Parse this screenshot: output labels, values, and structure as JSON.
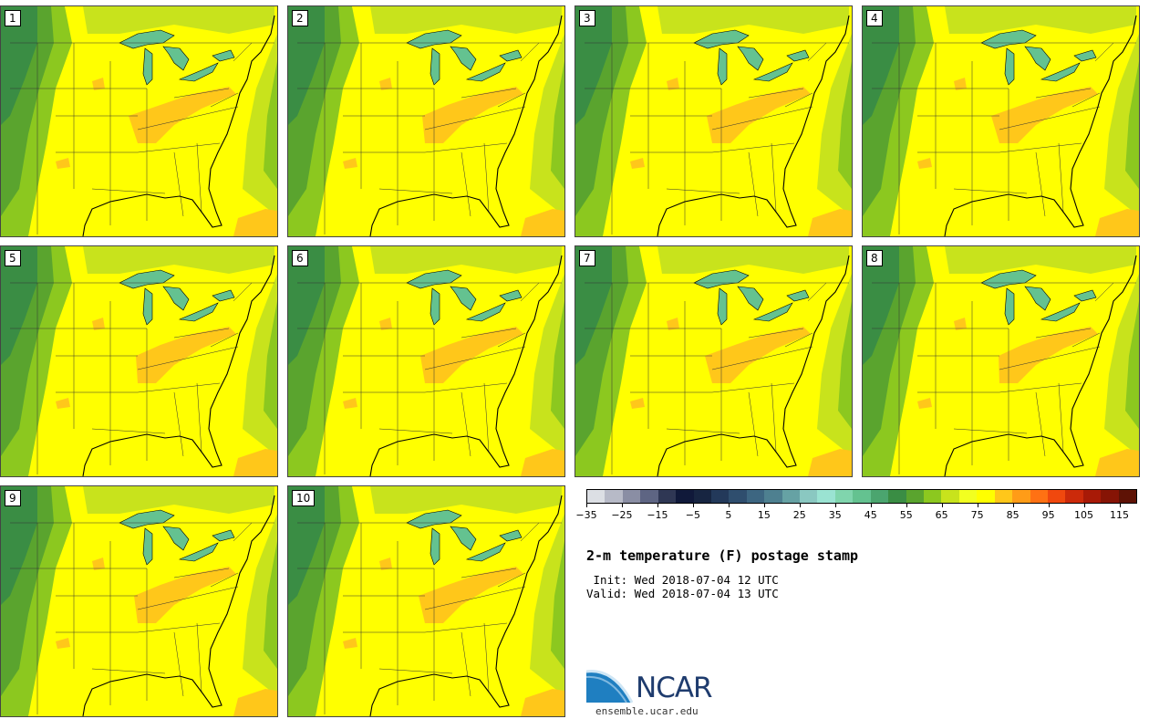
{
  "panels": [
    {
      "label": "1"
    },
    {
      "label": "2"
    },
    {
      "label": "3"
    },
    {
      "label": "4"
    },
    {
      "label": "5"
    },
    {
      "label": "6"
    },
    {
      "label": "7"
    },
    {
      "label": "8"
    },
    {
      "label": "9"
    },
    {
      "label": "10"
    }
  ],
  "colorbar": {
    "colors": [
      "#dcdfe4",
      "#b7bac7",
      "#8a8ea4",
      "#5e6583",
      "#2f3754",
      "#10193a",
      "#172541",
      "#23395a",
      "#2f4e6e",
      "#3d6681",
      "#4e8090",
      "#66a2a4",
      "#8ac8c1",
      "#9ae3d2",
      "#80d5ad",
      "#64c290",
      "#4ba56f",
      "#3a8d44",
      "#5aa42e",
      "#8cc81f",
      "#c8e31c",
      "#f2ff20",
      "#ffff00",
      "#ffc71a",
      "#ff9c17",
      "#ff7113",
      "#f0480e",
      "#cc2a0a",
      "#a81a07",
      "#861405",
      "#5e1205"
    ],
    "tick_labels": [
      "−35",
      "−25",
      "−15",
      "−5",
      "5",
      "15",
      "25",
      "35",
      "45",
      "55",
      "65",
      "75",
      "85",
      "95",
      "105",
      "115"
    ]
  },
  "title": "2-m temperature (F) postage stamp",
  "init": " Init: Wed 2018-07-04 12 UTC",
  "valid": "Valid: Wed 2018-07-04 13 UTC",
  "logo": {
    "text": "NCAR",
    "url": "ensemble.ucar.edu"
  }
}
